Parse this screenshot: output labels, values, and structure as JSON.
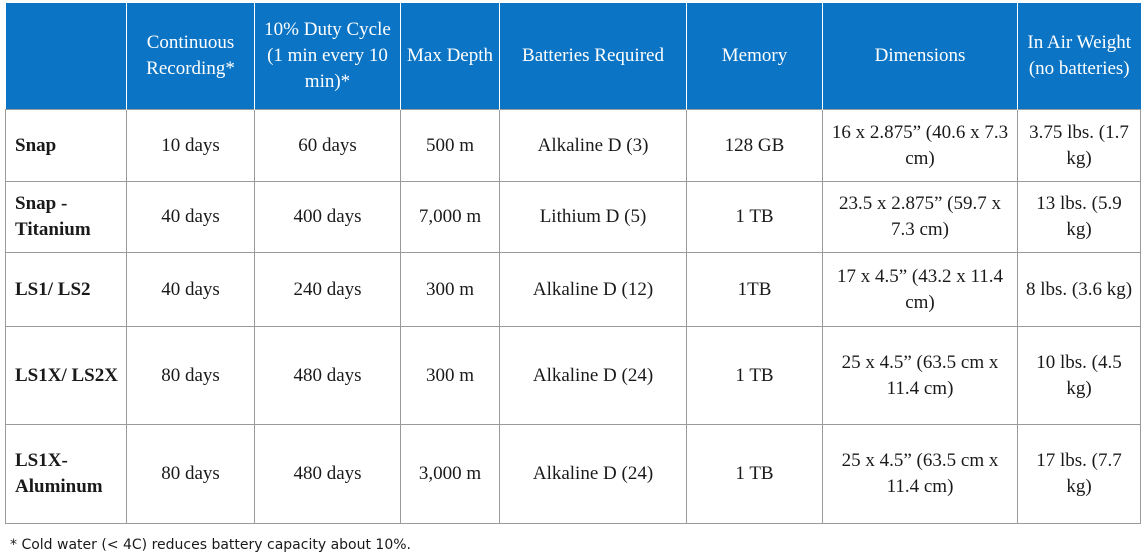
{
  "table": {
    "headers": [
      "",
      "Continuous Recording*",
      "10% Duty Cycle (1 min every 10 min)*",
      "Max Depth",
      "Batteries Required",
      "Memory",
      "Dimensions",
      "In Air Weight (no batteries)"
    ],
    "rows": [
      [
        "Snap",
        "10 days",
        "60 days",
        "500 m",
        "Alkaline D (3)",
        "128 GB",
        "16 x 2.875” (40.6 x 7.3 cm)",
        "3.75 lbs. (1.7 kg)"
      ],
      [
        "Snap - Titanium",
        "40 days",
        "400 days",
        "7,000 m",
        "Lithium D (5)",
        "1 TB",
        "23.5 x 2.875” (59.7 x 7.3 cm)",
        "13 lbs. (5.9 kg)"
      ],
      [
        "LS1/ LS2",
        "40 days",
        "240 days",
        "300 m",
        "Alkaline D (12)",
        "1TB",
        "17 x 4.5” (43.2 x 11.4 cm)",
        "8 lbs. (3.6 kg)"
      ],
      [
        "LS1X/ LS2X",
        "80 days",
        "480 days",
        "300 m",
        "Alkaline D (24)",
        "1 TB",
        "25 x 4.5” (63.5 cm x 11.4 cm)",
        "10 lbs. (4.5 kg)"
      ],
      [
        "LS1X- Aluminum",
        "80 days",
        "480 days",
        "3,000 m",
        "Alkaline D (24)",
        "1 TB",
        "25 x 4.5” (63.5 cm x 11.4 cm)",
        "17 lbs. (7.7 kg)"
      ]
    ]
  },
  "footnote": "* Cold water (< 4C) reduces battery capacity about 10%.",
  "colors": {
    "header_background": "#0b74c5",
    "header_text": "#ffffff",
    "grid": "#9a9a9a"
  }
}
